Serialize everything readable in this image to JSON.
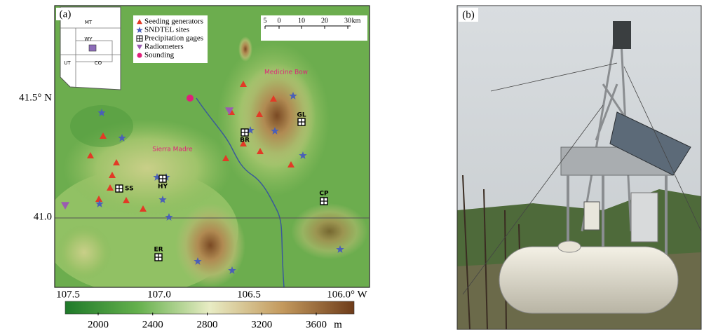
{
  "panel_a": {
    "label": "(a)",
    "legend": [
      "Seeding generators",
      "SNDTEL sites",
      "Precipitation gages",
      "Radiometers",
      "Sounding"
    ],
    "states": [
      "MT",
      "WY",
      "UT",
      "CO"
    ],
    "scale_bar": {
      "ticks": [
        "5",
        "0",
        "10",
        "20",
        "30"
      ],
      "unit": "km"
    },
    "places": [
      "Medicine Bow",
      "Sierra Madre"
    ],
    "sites": [
      "GL",
      "BR",
      "HY",
      "SS",
      "CP",
      "ER"
    ],
    "lat_labels": [
      "41.5° N",
      "41.0"
    ],
    "lon_labels": [
      "107.5",
      "107.0",
      "106.5",
      "106.0° W"
    ],
    "colorbar": {
      "ticks": [
        2000,
        2400,
        2800,
        3200,
        3600
      ],
      "unit": "m"
    }
  },
  "panel_b": {
    "label": "(b)"
  }
}
